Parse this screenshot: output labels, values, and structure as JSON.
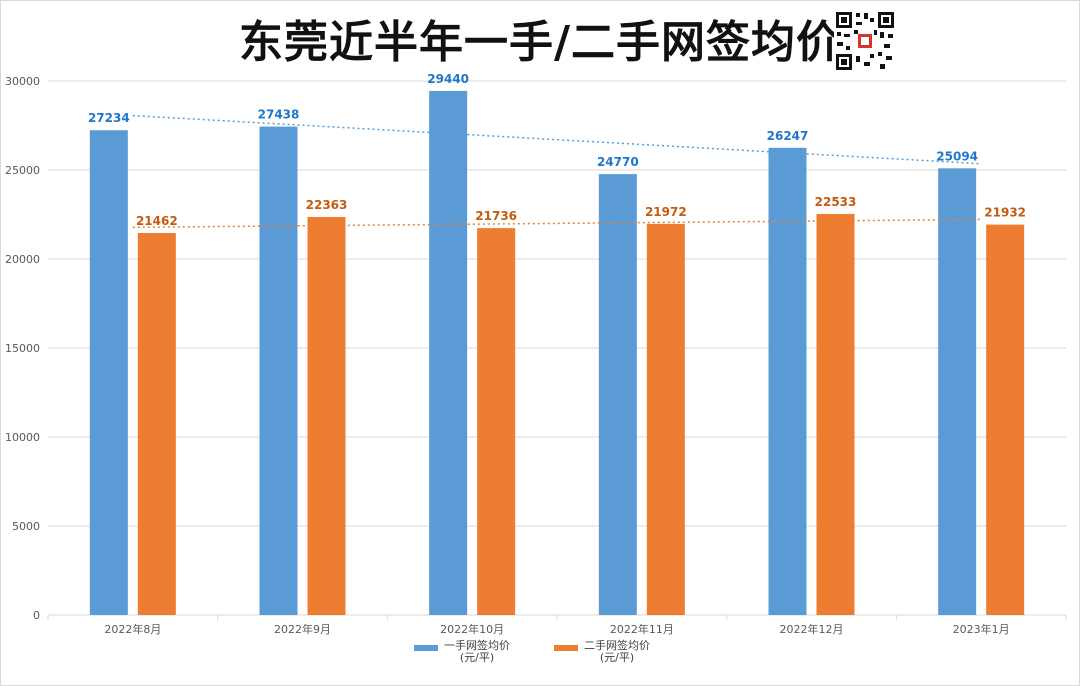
{
  "title": "东莞近半年一手/二手网签均价",
  "colors": {
    "series1": "#5b9bd5",
    "series1_label": "#1f77c9",
    "series2": "#ed7d31",
    "series2_label": "#c55a11",
    "gridline": "#d9d9d9",
    "axis_text": "#595959"
  },
  "chart_data": {
    "type": "bar",
    "categories": [
      "2022年8月",
      "2022年9月",
      "2022年10月",
      "2022年11月",
      "2022年12月",
      "2023年1月"
    ],
    "series": [
      {
        "name": "一手网签均价(元/平)",
        "name_line1": "一手网签均价",
        "name_line2": "(元/平)",
        "values": [
          27234,
          27438,
          29440,
          24770,
          26247,
          25094
        ],
        "trendline": "linear-dotted"
      },
      {
        "name": "二手网签均价(元/平)",
        "name_line1": "二手网签均价",
        "name_line2": "(元/平)",
        "values": [
          21462,
          22363,
          21736,
          21972,
          22533,
          21932
        ],
        "trendline": "linear-dotted"
      }
    ],
    "y_ticks": [
      0,
      5000,
      10000,
      15000,
      20000,
      25000,
      30000
    ],
    "ylim": [
      0,
      30000
    ],
    "grid": true,
    "data_labels": true,
    "legend_position": "bottom"
  },
  "qr_icon": "qr-code-icon"
}
